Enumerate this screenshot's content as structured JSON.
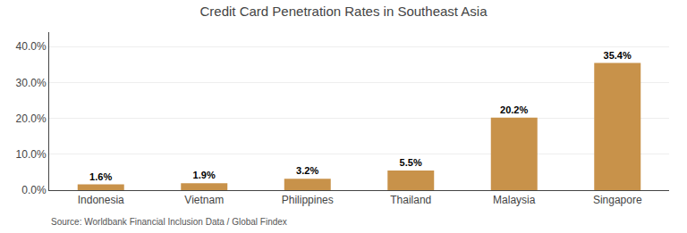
{
  "chart_data": {
    "type": "bar",
    "title": "Credit Card Penetration Rates in Southeast Asia",
    "categories": [
      "Indonesia",
      "Vietnam",
      "Philippines",
      "Thailand",
      "Malaysia",
      "Singapore"
    ],
    "values": [
      1.6,
      1.9,
      3.2,
      5.5,
      20.2,
      35.4
    ],
    "value_labels": [
      "1.6%",
      "1.9%",
      "3.2%",
      "5.5%",
      "20.2%",
      "35.4%"
    ],
    "data_labels": true,
    "color": "#C8924A",
    "ylim": [
      0,
      44
    ],
    "yticks": [
      {
        "value": 0,
        "label": "0.0%"
      },
      {
        "value": 10,
        "label": "10.0%"
      },
      {
        "value": 20,
        "label": "20.0%"
      },
      {
        "value": 30,
        "label": "30.0%"
      },
      {
        "value": 40,
        "label": "40.0%"
      }
    ],
    "grid": true,
    "annotations": [
      "Source: Worldbank Financial Inclusion Data / Global Findex"
    ]
  }
}
